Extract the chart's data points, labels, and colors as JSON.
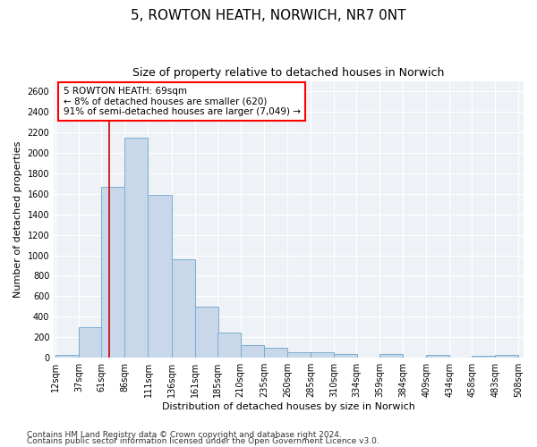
{
  "title": "5, ROWTON HEATH, NORWICH, NR7 0NT",
  "subtitle": "Size of property relative to detached houses in Norwich",
  "xlabel": "Distribution of detached houses by size in Norwich",
  "ylabel": "Number of detached properties",
  "footnote1": "Contains HM Land Registry data © Crown copyright and database right 2024.",
  "footnote2": "Contains public sector information licensed under the Open Government Licence v3.0.",
  "annotation_line1": "5 ROWTON HEATH: 69sqm",
  "annotation_line2": "← 8% of detached houses are smaller (620)",
  "annotation_line3": "91% of semi-detached houses are larger (7,049) →",
  "bar_left_edges": [
    12,
    37,
    61,
    86,
    111,
    136,
    161,
    185,
    210,
    235,
    260,
    285,
    310,
    334,
    359,
    384,
    409,
    434,
    458,
    483
  ],
  "bar_heights": [
    25,
    300,
    1670,
    2150,
    1590,
    960,
    500,
    250,
    120,
    100,
    50,
    50,
    35,
    0,
    35,
    0,
    25,
    0,
    20,
    25
  ],
  "bin_width": 25,
  "bar_color": "#c8d8ea",
  "bar_edge_color": "#7aaed0",
  "vline_x": 69,
  "vline_color": "#cc0000",
  "ylim": [
    0,
    2700
  ],
  "yticks": [
    0,
    200,
    400,
    600,
    800,
    1000,
    1200,
    1400,
    1600,
    1800,
    2000,
    2200,
    2400,
    2600
  ],
  "xtick_labels": [
    "12sqm",
    "37sqm",
    "61sqm",
    "86sqm",
    "111sqm",
    "136sqm",
    "161sqm",
    "185sqm",
    "210sqm",
    "235sqm",
    "260sqm",
    "285sqm",
    "310sqm",
    "334sqm",
    "359sqm",
    "384sqm",
    "409sqm",
    "434sqm",
    "458sqm",
    "483sqm",
    "508sqm"
  ],
  "xtick_positions": [
    12,
    37,
    61,
    86,
    111,
    136,
    161,
    185,
    210,
    235,
    260,
    285,
    310,
    334,
    359,
    384,
    409,
    434,
    458,
    483,
    508
  ],
  "background_color": "#eef2f7",
  "grid_color": "#ffffff",
  "title_fontsize": 11,
  "subtitle_fontsize": 9,
  "axis_label_fontsize": 8,
  "tick_fontsize": 7,
  "footnote_fontsize": 6.5,
  "annotation_fontsize": 7.5
}
